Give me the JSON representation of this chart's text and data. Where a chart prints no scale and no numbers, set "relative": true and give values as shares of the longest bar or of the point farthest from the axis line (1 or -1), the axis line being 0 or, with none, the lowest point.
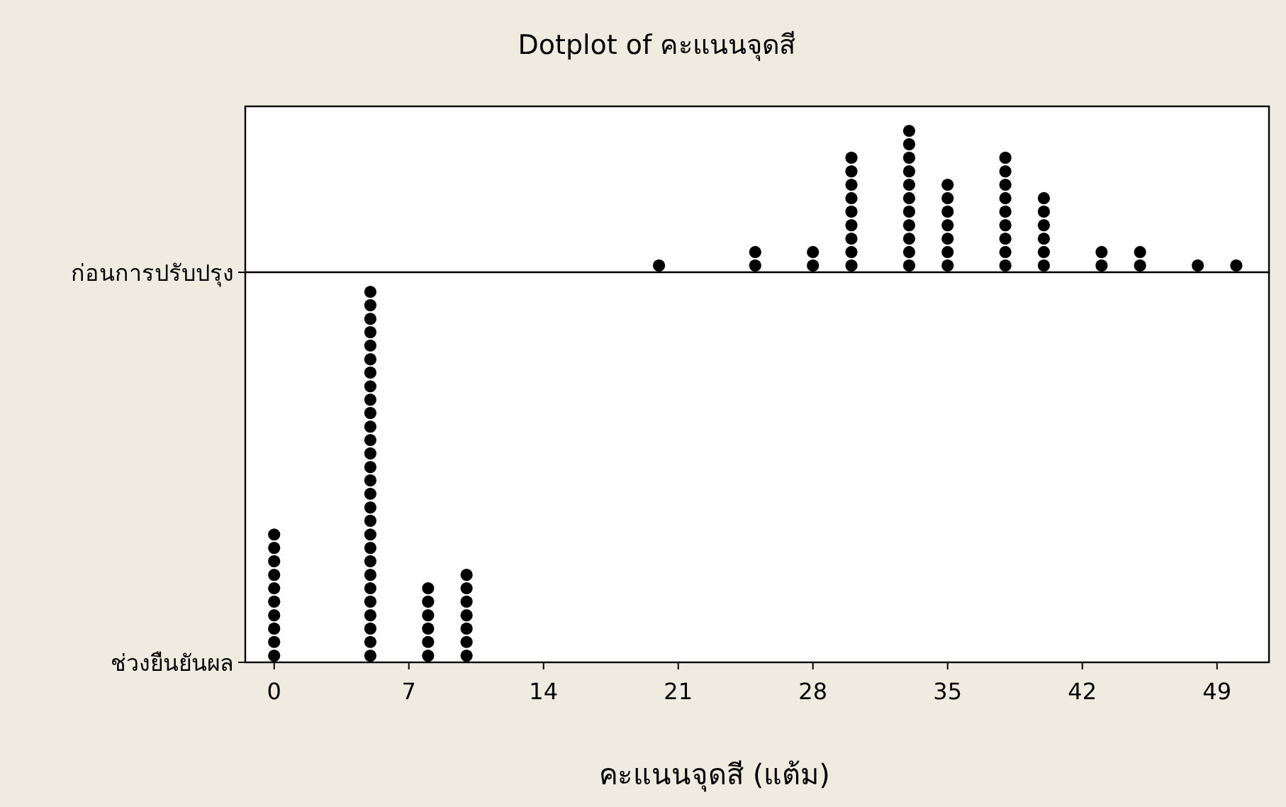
{
  "chart_data": [
    {
      "type": "scatter",
      "title": "Dotplot of คะแนนจุดสี",
      "xlim": [
        -1.5,
        51.7
      ],
      "relative": true,
      "tick_labels": false,
      "marker": "circle",
      "legend": "left",
      "series": [
        {
          "name": "ก่อนการปรับปรุง",
          "color": "#000000",
          "x": [
            20,
            25,
            25,
            28,
            28,
            30,
            30,
            30,
            30,
            30,
            30,
            30,
            30,
            30,
            33,
            33,
            33,
            33,
            33,
            33,
            33,
            33,
            33,
            33,
            33,
            35,
            35,
            35,
            35,
            35,
            35,
            35,
            38,
            38,
            38,
            38,
            38,
            38,
            38,
            38,
            38,
            40,
            40,
            40,
            40,
            40,
            40,
            43,
            43,
            45,
            45,
            48,
            50
          ],
          "values": [
            0.048,
            0.048,
            0.143,
            0.048,
            0.143,
            0.048,
            0.143,
            0.238,
            0.333,
            0.429,
            0.524,
            0.619,
            0.714,
            0.81,
            0.048,
            0.143,
            0.238,
            0.333,
            0.429,
            0.524,
            0.619,
            0.714,
            0.81,
            0.905,
            1,
            0.048,
            0.143,
            0.238,
            0.333,
            0.429,
            0.524,
            0.619,
            0.048,
            0.143,
            0.238,
            0.333,
            0.429,
            0.524,
            0.619,
            0.714,
            0.81,
            0.048,
            0.143,
            0.238,
            0.333,
            0.429,
            0.524,
            0.048,
            0.143,
            0.048,
            0.143,
            0.048,
            0.048
          ]
        }
      ]
    },
    {
      "type": "scatter",
      "xlabel": "คะแนนจุดสี (แต้ม)",
      "xlim": [
        -1.5,
        51.7
      ],
      "xticks": [
        0,
        7,
        14,
        21,
        28,
        35,
        42,
        49
      ],
      "relative": true,
      "tick_labels": "x",
      "marker": "circle",
      "legend": "left",
      "series": [
        {
          "name": "ช่วงยืนยันผล",
          "color": "#000000",
          "x": [
            0,
            0,
            0,
            0,
            0,
            0,
            0,
            0,
            0,
            0,
            5,
            5,
            5,
            5,
            5,
            5,
            5,
            5,
            5,
            5,
            5,
            5,
            5,
            5,
            5,
            5,
            5,
            5,
            5,
            5,
            5,
            5,
            5,
            5,
            5,
            5,
            5,
            5,
            8,
            8,
            8,
            8,
            8,
            8,
            10,
            10,
            10,
            10,
            10,
            10,
            10
          ],
          "values": [
            0.018,
            0.055,
            0.091,
            0.127,
            0.164,
            0.2,
            0.236,
            0.273,
            0.309,
            0.345,
            0.018,
            0.055,
            0.091,
            0.127,
            0.164,
            0.2,
            0.236,
            0.273,
            0.309,
            0.345,
            0.382,
            0.418,
            0.455,
            0.491,
            0.527,
            0.564,
            0.6,
            0.636,
            0.673,
            0.709,
            0.745,
            0.782,
            0.818,
            0.855,
            0.891,
            0.927,
            0.964,
            1,
            0.018,
            0.055,
            0.091,
            0.127,
            0.164,
            0.2,
            0.018,
            0.055,
            0.091,
            0.127,
            0.164,
            0.2,
            0.236
          ]
        }
      ]
    }
  ]
}
